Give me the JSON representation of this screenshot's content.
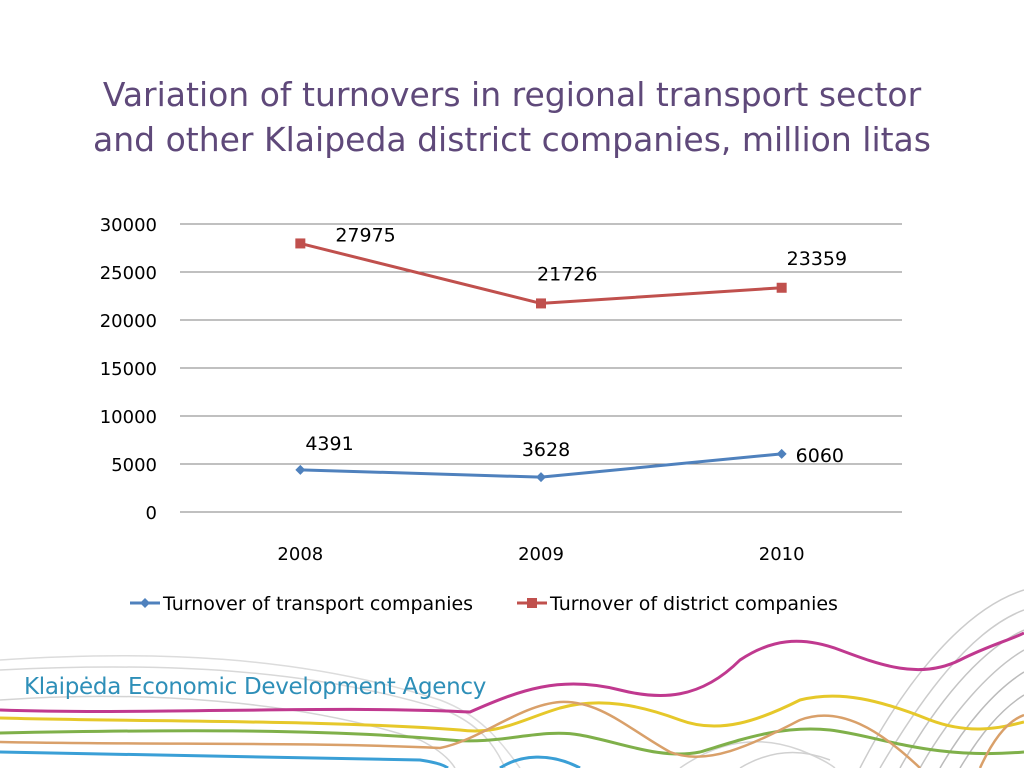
{
  "slide": {
    "title_line1": "Variation of turnovers in regional transport sector",
    "title_line2": "and other Klaipeda district companies, million litas",
    "brand": "Klaipėda Economic Development Agency"
  },
  "colors": {
    "title": "#5f497a",
    "series_transport": "#4f81bd",
    "series_district": "#c0504d",
    "gridline": "#808080",
    "wave_magenta": "#c0398f",
    "wave_yellow": "#e6c82a",
    "wave_green": "#7fb04a",
    "wave_orange": "#d9a06a",
    "wave_blue": "#3a9fd6",
    "wave_gray": "#bdbdbd"
  },
  "chart_data": {
    "type": "line",
    "title": "",
    "xlabel": "",
    "ylabel": "",
    "categories": [
      "2008",
      "2009",
      "2010"
    ],
    "ylim": [
      0,
      30000
    ],
    "yticks": [
      0,
      5000,
      10000,
      15000,
      20000,
      25000,
      30000
    ],
    "grid": true,
    "legend_position": "bottom",
    "series": [
      {
        "name": "Turnover of transport companies",
        "values": [
          4391,
          3628,
          6060
        ],
        "labels": [
          "4391",
          "3628",
          "6060"
        ],
        "color": "#4f81bd",
        "marker": "diamond"
      },
      {
        "name": "Turnover of district companies",
        "values": [
          27975,
          21726,
          23359
        ],
        "labels": [
          "27975",
          "21726",
          "23359"
        ],
        "color": "#c0504d",
        "marker": "square"
      }
    ]
  }
}
